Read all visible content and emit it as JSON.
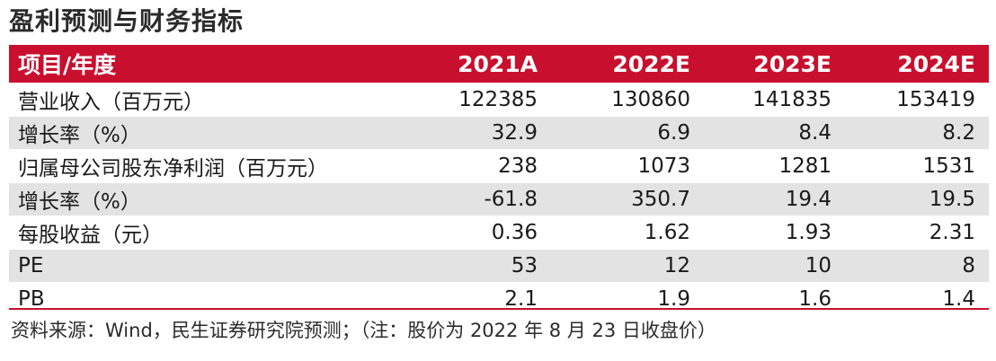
{
  "title": "盈利预测与财务指标",
  "header": [
    "项目/年度",
    "2021A",
    "2022E",
    "2023E",
    "2024E"
  ],
  "rows": [
    [
      "营业收入（百万元）",
      "122385",
      "130860",
      "141835",
      "153419"
    ],
    [
      "增长率（%）",
      "32.9",
      "6.9",
      "8.4",
      "8.2"
    ],
    [
      "归属母公司股东净利润（百万元）",
      "238",
      "1073",
      "1281",
      "1531"
    ],
    [
      "增长率（%）",
      "-61.8",
      "350.7",
      "19.4",
      "19.5"
    ],
    [
      "每股收益（元）",
      "0.36",
      "1.62",
      "1.93",
      "2.31"
    ],
    [
      "PE",
      "53",
      "12",
      "10",
      "8"
    ],
    [
      "PB",
      "2.1",
      "1.9",
      "1.6",
      "1.4"
    ]
  ],
  "source": "资料来源：Wind，民生证券研究院预测；（注：股价为 2022 年 8 月 23 日收盘价）",
  "colors": {
    "accent": "#c8102e",
    "shade": "#e3e3e3"
  }
}
